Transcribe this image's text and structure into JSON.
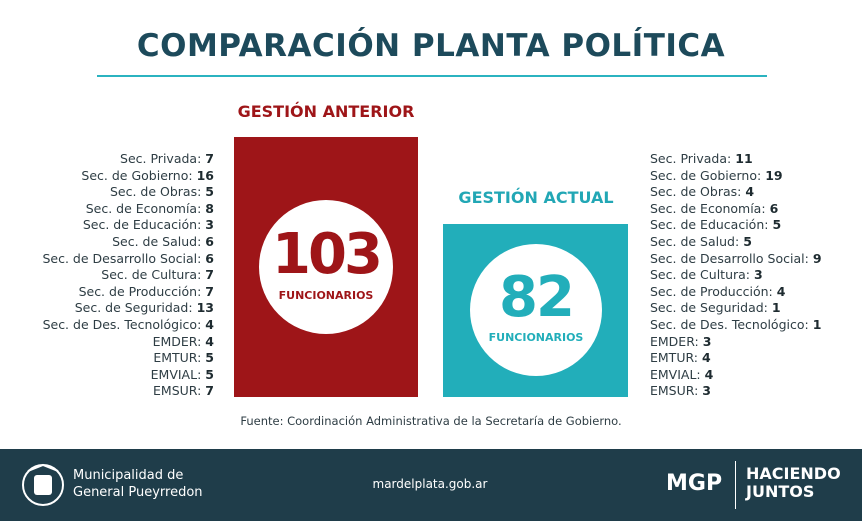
{
  "title": "COMPARACIÓN PLANTA POLÍTICA",
  "previous": {
    "heading": "GESTIÓN ANTERIOR",
    "total": "103",
    "unit": "FUNCIONARIOS",
    "items": [
      [
        "Sec. Privada:",
        "7"
      ],
      [
        "Sec. de Gobierno:",
        "16"
      ],
      [
        "Sec. de Obras:",
        "5"
      ],
      [
        "Sec. de Economía:",
        "8"
      ],
      [
        "Sec. de Educación:",
        "3"
      ],
      [
        "Sec. de Salud:",
        "6"
      ],
      [
        "Sec. de Desarrollo Social:",
        "6"
      ],
      [
        "Sec. de Cultura:",
        "7"
      ],
      [
        "Sec. de Producción:",
        "7"
      ],
      [
        "Sec. de Seguridad:",
        "13"
      ],
      [
        "Sec. de Des. Tecnológico:",
        "4"
      ],
      [
        "EMDER:",
        "4"
      ],
      [
        "EMTUR:",
        "5"
      ],
      [
        "EMVIAL:",
        "5"
      ],
      [
        "EMSUR:",
        "7"
      ]
    ]
  },
  "current": {
    "heading": "GESTIÓN ACTUAL",
    "total": "82",
    "unit": "FUNCIONARIOS",
    "items": [
      [
        "Sec. Privada:",
        "11"
      ],
      [
        "Sec. de Gobierno:",
        "19"
      ],
      [
        "Sec. de Obras:",
        "4"
      ],
      [
        "Sec. de Economía:",
        "6"
      ],
      [
        "Sec. de Educación:",
        "5"
      ],
      [
        "Sec. de Salud:",
        "5"
      ],
      [
        "Sec. de Desarrollo Social:",
        "9"
      ],
      [
        "Sec. de Cultura:",
        "3"
      ],
      [
        "Sec. de Producción:",
        "4"
      ],
      [
        "Sec. de Seguridad:",
        "1"
      ],
      [
        "Sec. de Des. Tecnológico:",
        "1"
      ],
      [
        "EMDER:",
        "3"
      ],
      [
        "EMTUR:",
        "4"
      ],
      [
        "EMVIAL:",
        "4"
      ],
      [
        "EMSUR:",
        "3"
      ]
    ]
  },
  "source": "Fuente: Coordinación Administrativa de la Secretaría de Gobierno.",
  "footer": {
    "org_line1": "Municipalidad de",
    "org_line2": "General Pueyrredon",
    "website": "mardelplata.gob.ar",
    "brand": "MGP",
    "slogan_line1": "HACIENDO",
    "slogan_line2": "JUNTOS"
  }
}
